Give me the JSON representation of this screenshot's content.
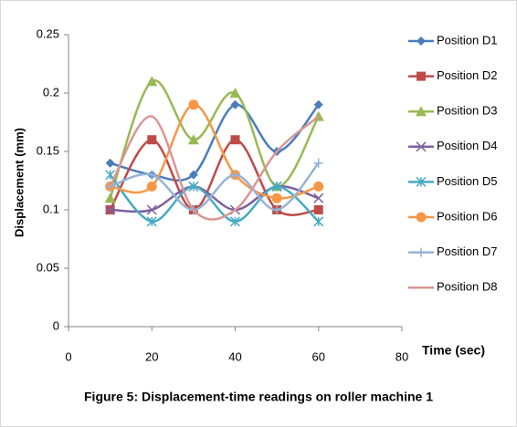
{
  "chart_data": {
    "type": "line",
    "title": "Figure 5: Displacement-time readings on roller machine 1",
    "xlabel": "Time (sec)",
    "ylabel": "Displacement (mm)",
    "x": [
      10,
      20,
      30,
      40,
      50,
      60
    ],
    "xlim": [
      0,
      80
    ],
    "xticks": [
      0,
      20,
      40,
      60,
      80
    ],
    "ylim": [
      0,
      0.25
    ],
    "yticks": [
      0,
      0.05,
      0.1,
      0.15,
      0.2,
      0.25
    ],
    "grid": false,
    "smooth": true,
    "legend": "right",
    "series": [
      {
        "name": "Position D1",
        "color": "#4a7ebb",
        "marker": "diamond",
        "values": [
          0.14,
          0.13,
          0.13,
          0.19,
          0.15,
          0.19
        ]
      },
      {
        "name": "Position D2",
        "color": "#be4b48",
        "marker": "square",
        "values": [
          0.1,
          0.16,
          0.1,
          0.16,
          0.1,
          0.1
        ]
      },
      {
        "name": "Position D3",
        "color": "#98b954",
        "marker": "triangle",
        "values": [
          0.11,
          0.21,
          0.16,
          0.2,
          0.12,
          0.18
        ]
      },
      {
        "name": "Position D4",
        "color": "#7d60a0",
        "marker": "x",
        "values": [
          0.1,
          0.1,
          0.12,
          0.1,
          0.12,
          0.11
        ]
      },
      {
        "name": "Position D5",
        "color": "#46aac5",
        "marker": "star",
        "values": [
          0.13,
          0.09,
          0.12,
          0.09,
          0.12,
          0.09
        ]
      },
      {
        "name": "Position D6",
        "color": "#f79646",
        "marker": "circle",
        "values": [
          0.12,
          0.12,
          0.19,
          0.13,
          0.11,
          0.12
        ]
      },
      {
        "name": "Position D7",
        "color": "#95b3d7",
        "marker": "plus",
        "values": [
          0.12,
          0.13,
          0.1,
          0.13,
          0.1,
          0.14
        ]
      },
      {
        "name": "Position D8",
        "color": "#d99694",
        "marker": "none",
        "values": [
          0.12,
          0.18,
          0.1,
          0.1,
          0.15,
          0.18
        ]
      }
    ]
  }
}
